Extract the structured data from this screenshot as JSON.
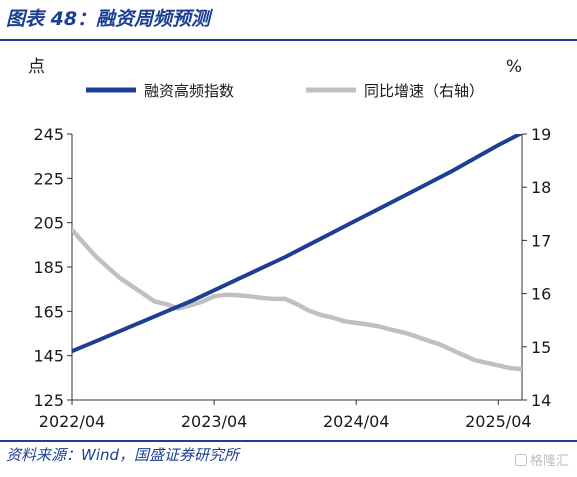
{
  "figure": {
    "title": "图表 48：融资周频预测",
    "source": "资料来源：Wind，国盛证券研究所",
    "watermark": "格隆汇"
  },
  "chart_data": {
    "type": "line",
    "left_unit": "点",
    "right_unit": "%",
    "x_tick_labels": [
      "2022/04",
      "2023/04",
      "2024/04",
      "2025/04"
    ],
    "y_left": {
      "min": 125,
      "max": 245,
      "ticks": [
        125,
        145,
        165,
        185,
        205,
        225,
        245
      ]
    },
    "y_right": {
      "min": 14,
      "max": 19,
      "ticks": [
        14,
        15,
        16,
        17,
        18,
        19
      ]
    },
    "legend_position": "top",
    "grid": false,
    "series": [
      {
        "name": "融资高频指数",
        "axis": "left",
        "color": "#1c3f94",
        "x": [
          "2022/04",
          "2022/06",
          "2022/08",
          "2022/10",
          "2022/12",
          "2023/02",
          "2023/04",
          "2023/06",
          "2023/08",
          "2023/10",
          "2023/12",
          "2024/02",
          "2024/04",
          "2024/06",
          "2024/08",
          "2024/10",
          "2024/12",
          "2025/02",
          "2025/04",
          "2025/06"
        ],
        "values": [
          147,
          151.5,
          156,
          160.5,
          165,
          169.5,
          174.5,
          179.5,
          184.5,
          189.5,
          195,
          200.5,
          206,
          211.5,
          217,
          222.5,
          228,
          234,
          240,
          245.5
        ]
      },
      {
        "name": "同比增速（右轴）",
        "axis": "right",
        "color": "#c0c0c0",
        "x": [
          "2022/04",
          "2022/05",
          "2022/06",
          "2022/07",
          "2022/08",
          "2022/09",
          "2022/10",
          "2022/11",
          "2022/12",
          "2023/01",
          "2023/02",
          "2023/03",
          "2023/04",
          "2023/05",
          "2023/06",
          "2023/07",
          "2023/08",
          "2023/09",
          "2023/10",
          "2023/11",
          "2023/12",
          "2024/01",
          "2024/02",
          "2024/03",
          "2024/04",
          "2024/05",
          "2024/06",
          "2024/07",
          "2024/08",
          "2024/09",
          "2024/10",
          "2024/11",
          "2024/12",
          "2025/01",
          "2025/02",
          "2025/03",
          "2025/04",
          "2025/05",
          "2025/06"
        ],
        "values": [
          17.2,
          16.95,
          16.7,
          16.5,
          16.3,
          16.15,
          16.0,
          15.85,
          15.8,
          15.72,
          15.78,
          15.85,
          15.95,
          15.98,
          15.97,
          15.95,
          15.92,
          15.9,
          15.9,
          15.8,
          15.68,
          15.6,
          15.55,
          15.48,
          15.45,
          15.42,
          15.38,
          15.32,
          15.27,
          15.2,
          15.12,
          15.05,
          14.95,
          14.85,
          14.75,
          14.7,
          14.65,
          14.6,
          14.58
        ]
      }
    ]
  }
}
